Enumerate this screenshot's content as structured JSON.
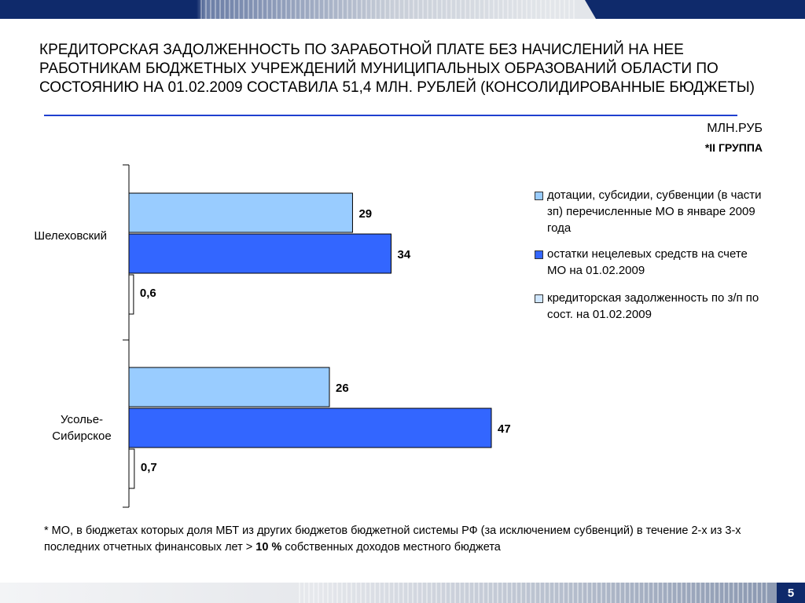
{
  "title": "Кредиторская задолженность по заработной плате без начислений на нее работникам бюджетных учреждений муниципальных образований области по состоянию на 01.02.2009 составила 51,4 млн. рублей (консолидированные бюджеты)",
  "unit": "МЛН.РУБ",
  "group": "*II ГРУППА",
  "page_number": "5",
  "footnote": {
    "text_before": "* МО, в бюджетах которых доля МБТ из других бюджетов бюджетной системы РФ (за исключением субвенций) в течение 2-х из 3-х последних отчетных финансовых лет > ",
    "bold": "10 %",
    "text_after": " собственных доходов местного бюджета"
  },
  "colors": {
    "brand_dark": "#0f2a6b",
    "rule": "#1f3fcf",
    "series_light": "#99ccff",
    "series_dark": "#3366ff",
    "series_white": "#ffffff"
  },
  "chart_data": {
    "type": "bar",
    "orientation": "horizontal",
    "categories": [
      "Шелеховский",
      "Усолье-Сибирское"
    ],
    "series": [
      {
        "name": "дотации, субсидии, субвенции (в части зп) перечисленные МО в январе 2009 года",
        "values": [
          29,
          26
        ],
        "labels": [
          "29",
          "26"
        ],
        "color": "#99ccff"
      },
      {
        "name": "остатки нецелевых средств на счете МО на 01.02.2009",
        "values": [
          34,
          47
        ],
        "labels": [
          "34",
          "47"
        ],
        "color": "#3366ff"
      },
      {
        "name": "кредиторская  задолженность  по з/п по сост. на  01.02.2009",
        "values": [
          0.6,
          0.7
        ],
        "labels": [
          "0,6",
          "0,7"
        ],
        "color": "#ffffff"
      }
    ],
    "xlim": [
      0,
      47
    ],
    "grid": false,
    "legend_position": "right"
  }
}
